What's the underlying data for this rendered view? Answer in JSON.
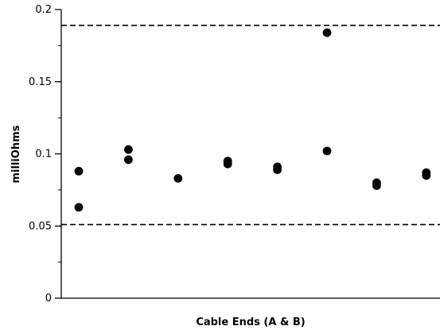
{
  "chart_data": {
    "type": "scatter",
    "title": "",
    "xlabel": "Cable Ends (A & B)",
    "ylabel": "milliOhms",
    "ylim": [
      0,
      0.2
    ],
    "xlim": [
      0.5,
      8.5
    ],
    "yticks": [
      0,
      0.05,
      0.1,
      0.15,
      0.2
    ],
    "ytick_labels": [
      "0",
      "0.05",
      "0.1",
      "0.15",
      "0.2"
    ],
    "minor_ytick_step": 0.025,
    "grid": false,
    "legend": "none",
    "reference_lines": [
      0.189,
      0.051
    ],
    "points": [
      {
        "x": 1,
        "y": 0.088
      },
      {
        "x": 1,
        "y": 0.063
      },
      {
        "x": 2,
        "y": 0.103
      },
      {
        "x": 2,
        "y": 0.096
      },
      {
        "x": 3,
        "y": 0.083
      },
      {
        "x": 4,
        "y": 0.095
      },
      {
        "x": 4,
        "y": 0.093
      },
      {
        "x": 5,
        "y": 0.091
      },
      {
        "x": 5,
        "y": 0.089
      },
      {
        "x": 6,
        "y": 0.184
      },
      {
        "x": 6,
        "y": 0.102
      },
      {
        "x": 7,
        "y": 0.08
      },
      {
        "x": 7,
        "y": 0.078
      },
      {
        "x": 8,
        "y": 0.087
      },
      {
        "x": 8,
        "y": 0.085
      }
    ],
    "colors": {
      "marker": "#000000",
      "axis": "#000000",
      "reference_line": "#000000"
    }
  }
}
